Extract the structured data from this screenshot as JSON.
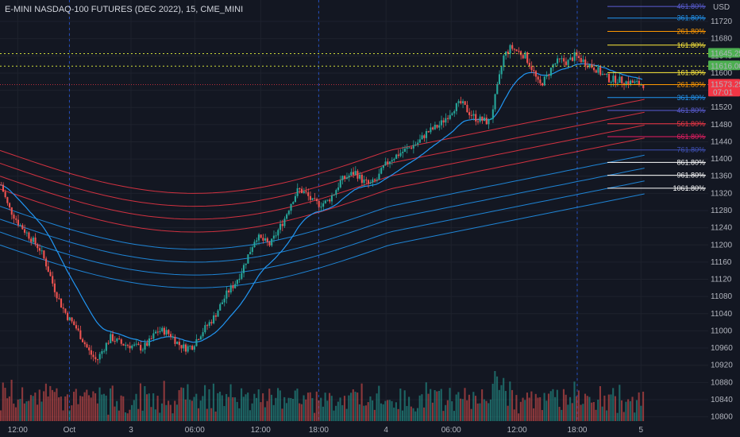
{
  "header": {
    "title": "E-MINI NASDAQ-100 FUTURES (DEC 2022), 15, CME_MINI"
  },
  "axis": {
    "currency": "USD"
  },
  "colors": {
    "background": "#131722",
    "up": "#26a69a",
    "down": "#ef5350",
    "grid": "#1e222d",
    "ema": "#2196f3"
  },
  "price_tags": [
    {
      "value": "11645.25",
      "color": "#4caf50"
    },
    {
      "value": "11616.00",
      "color": "#4caf50"
    },
    {
      "value": "11573.25",
      "sub": "07:01",
      "color": "#f23645"
    }
  ],
  "chart_data": {
    "type": "candlestick",
    "ylim": [
      10790,
      11770
    ],
    "yticks": [
      11720,
      11680,
      11640,
      11600,
      11560,
      11520,
      11480,
      11440,
      11400,
      11360,
      11320,
      11280,
      11240,
      11200,
      11160,
      11120,
      11080,
      11040,
      11000,
      10960,
      10920,
      10880,
      10840,
      10800
    ],
    "xticks": [
      {
        "label": "12:00",
        "x": 0.025
      },
      {
        "label": "Oct",
        "x": 0.098
      },
      {
        "label": "3",
        "x": 0.185
      },
      {
        "label": "06:00",
        "x": 0.275
      },
      {
        "label": "12:00",
        "x": 0.368
      },
      {
        "label": "18:00",
        "x": 0.45
      },
      {
        "label": "4",
        "x": 0.545
      },
      {
        "label": "06:00",
        "x": 0.637
      },
      {
        "label": "12:00",
        "x": 0.73
      },
      {
        "label": "18:00",
        "x": 0.815
      },
      {
        "label": "5",
        "x": 0.905
      }
    ],
    "price_path": [
      [
        0.0,
        11340
      ],
      [
        0.01,
        11290
      ],
      [
        0.025,
        11250
      ],
      [
        0.04,
        11220
      ],
      [
        0.055,
        11190
      ],
      [
        0.065,
        11150
      ],
      [
        0.075,
        11100
      ],
      [
        0.085,
        11060
      ],
      [
        0.095,
        11030
      ],
      [
        0.105,
        11010
      ],
      [
        0.115,
        10980
      ],
      [
        0.125,
        10950
      ],
      [
        0.135,
        10930
      ],
      [
        0.145,
        10960
      ],
      [
        0.155,
        10985
      ],
      [
        0.17,
        10970
      ],
      [
        0.185,
        10965
      ],
      [
        0.2,
        10960
      ],
      [
        0.21,
        10975
      ],
      [
        0.22,
        11000
      ],
      [
        0.23,
        11000
      ],
      [
        0.24,
        10990
      ],
      [
        0.25,
        10970
      ],
      [
        0.26,
        10960
      ],
      [
        0.27,
        10965
      ],
      [
        0.28,
        10990
      ],
      [
        0.29,
        11010
      ],
      [
        0.3,
        11030
      ],
      [
        0.31,
        11060
      ],
      [
        0.32,
        11090
      ],
      [
        0.33,
        11110
      ],
      [
        0.34,
        11140
      ],
      [
        0.35,
        11180
      ],
      [
        0.36,
        11220
      ],
      [
        0.37,
        11210
      ],
      [
        0.38,
        11200
      ],
      [
        0.39,
        11230
      ],
      [
        0.4,
        11260
      ],
      [
        0.41,
        11300
      ],
      [
        0.42,
        11330
      ],
      [
        0.43,
        11320
      ],
      [
        0.44,
        11300
      ],
      [
        0.45,
        11295
      ],
      [
        0.46,
        11300
      ],
      [
        0.47,
        11320
      ],
      [
        0.48,
        11350
      ],
      [
        0.49,
        11360
      ],
      [
        0.5,
        11370
      ],
      [
        0.51,
        11350
      ],
      [
        0.52,
        11340
      ],
      [
        0.53,
        11350
      ],
      [
        0.54,
        11380
      ],
      [
        0.55,
        11400
      ],
      [
        0.56,
        11410
      ],
      [
        0.57,
        11420
      ],
      [
        0.58,
        11430
      ],
      [
        0.59,
        11440
      ],
      [
        0.6,
        11460
      ],
      [
        0.61,
        11470
      ],
      [
        0.62,
        11480
      ],
      [
        0.63,
        11500
      ],
      [
        0.64,
        11520
      ],
      [
        0.65,
        11530
      ],
      [
        0.66,
        11510
      ],
      [
        0.67,
        11495
      ],
      [
        0.68,
        11490
      ],
      [
        0.69,
        11485
      ],
      [
        0.7,
        11560
      ],
      [
        0.71,
        11640
      ],
      [
        0.72,
        11660
      ],
      [
        0.73,
        11650
      ],
      [
        0.74,
        11640
      ],
      [
        0.75,
        11610
      ],
      [
        0.76,
        11570
      ],
      [
        0.77,
        11590
      ],
      [
        0.78,
        11620
      ],
      [
        0.79,
        11630
      ],
      [
        0.8,
        11625
      ],
      [
        0.81,
        11640
      ],
      [
        0.82,
        11630
      ],
      [
        0.83,
        11620
      ],
      [
        0.84,
        11610
      ],
      [
        0.85,
        11595
      ],
      [
        0.86,
        11585
      ],
      [
        0.87,
        11585
      ],
      [
        0.88,
        11580
      ],
      [
        0.89,
        11578
      ],
      [
        0.9,
        11575
      ],
      [
        0.91,
        11573
      ]
    ],
    "fib_levels": [
      {
        "label": "461.80%",
        "price": 11755,
        "color": "#5b5ed6"
      },
      {
        "label": "361.80%",
        "price": 11728,
        "color": "#2196f3"
      },
      {
        "label": "261.80%",
        "price": 11697,
        "color": "#ff9800"
      },
      {
        "label": "161.80%",
        "price": 11665,
        "color": "#ffeb3b"
      },
      {
        "label": "161.80%",
        "price": 11601,
        "color": "#ffeb3b"
      },
      {
        "label": "261.80%",
        "price": 11573,
        "color": "#ff9800"
      },
      {
        "label": "361.80%",
        "price": 11543,
        "color": "#2196f3"
      },
      {
        "label": "461.80%",
        "price": 11513,
        "color": "#5b5ed6"
      },
      {
        "label": "561.80%",
        "price": 11482,
        "color": "#f23645"
      },
      {
        "label": "661.80%",
        "price": 11452,
        "color": "#e91e63"
      },
      {
        "label": "761.80%",
        "price": 11421,
        "color": "#3f51b5"
      },
      {
        "label": "861.80%",
        "price": 11392,
        "color": "#ffffff"
      },
      {
        "label": "961.80%",
        "price": 11362,
        "color": "#ffffff"
      },
      {
        "label": "1061.80%",
        "price": 11332,
        "color": "#ffffff"
      }
    ]
  }
}
